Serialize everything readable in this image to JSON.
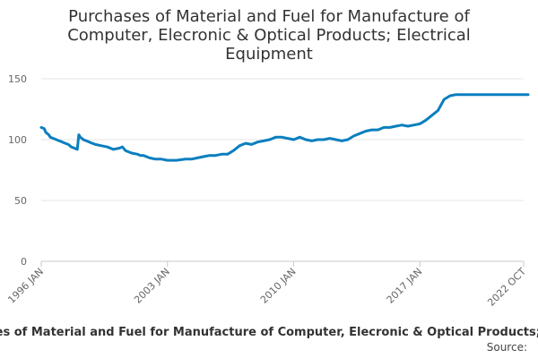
{
  "chart_data": {
    "type": "line",
    "title": "Purchases of Material and Fuel for Manufacture of Computer, Elecronic & Optical Products; Electrical Equipment",
    "xlabel": "",
    "ylabel": "",
    "ylim": [
      0,
      150
    ],
    "y_ticks": [
      0,
      50,
      100,
      150
    ],
    "x_ticks": [
      "1996 JAN",
      "2003 JAN",
      "2010 JAN",
      "2017 JAN",
      "2022 OCT"
    ],
    "grid": true,
    "legend": "none",
    "series_color": "#0a7fbf",
    "x_unit": "months since 1996 JAN",
    "series": [
      {
        "name": "Purchases of Material and Fuel for Manufacture of Computer, Elecronic & Optical Products; Electrical Equipment",
        "x": [
          0,
          2,
          3,
          5,
          6,
          8,
          10,
          12,
          14,
          16,
          18,
          20,
          22,
          24,
          25,
          26,
          27,
          28,
          30,
          32,
          34,
          36,
          40,
          44,
          48,
          52,
          54,
          56,
          60,
          64,
          66,
          68,
          70,
          72,
          76,
          80,
          84,
          90,
          96,
          100,
          104,
          108,
          112,
          116,
          120,
          124,
          128,
          132,
          136,
          140,
          144,
          148,
          152,
          156,
          160,
          164,
          168,
          172,
          176,
          180,
          184,
          188,
          192,
          196,
          200,
          204,
          208,
          212,
          216,
          220,
          224,
          228,
          232,
          236,
          240,
          244,
          248,
          252,
          256,
          260,
          264,
          268,
          272,
          276,
          280,
          284,
          288,
          292,
          296,
          300,
          304,
          308,
          312,
          316,
          318,
          320,
          324,
          308
        ],
        "y": [
          110,
          109,
          106,
          104,
          102,
          101,
          100,
          99,
          98,
          97,
          96,
          94,
          93,
          92,
          104,
          102,
          101,
          100,
          99,
          98,
          97,
          96,
          95,
          94,
          92,
          93,
          94,
          91,
          89,
          88,
          87,
          87,
          86,
          85,
          84,
          84,
          83,
          83,
          84,
          84,
          85,
          86,
          87,
          87,
          88,
          88,
          91,
          95,
          97,
          96,
          98,
          99,
          100,
          102,
          102,
          101,
          100,
          102,
          100,
          99,
          100,
          100,
          101,
          100,
          99,
          100,
          103,
          105,
          107,
          108,
          108,
          110,
          110,
          111,
          112,
          111,
          112,
          113,
          116,
          120,
          124,
          133,
          136,
          137,
          137,
          137,
          137,
          137,
          137,
          137,
          137,
          137,
          137,
          137,
          137,
          137,
          137,
          137
        ],
        "values": [
          110,
          109,
          106,
          104,
          102,
          101,
          100,
          99,
          98,
          97,
          96,
          94,
          93,
          92,
          104,
          102,
          101,
          100,
          99,
          98,
          97,
          96,
          95,
          94,
          92,
          93,
          94,
          91,
          89,
          88,
          87,
          87,
          86,
          85,
          84,
          84,
          83,
          83,
          84,
          84,
          85,
          86,
          87,
          87,
          88,
          88,
          91,
          95,
          97,
          96,
          98,
          99,
          100,
          102,
          102,
          101,
          100,
          102,
          100,
          99,
          100,
          100,
          101,
          100,
          99,
          100,
          103,
          105,
          107,
          108,
          108,
          110,
          110,
          111,
          112,
          111,
          112,
          113,
          116,
          120,
          124,
          133,
          136,
          137,
          137,
          137,
          137,
          137,
          137,
          137,
          137,
          137,
          137,
          137,
          137,
          137,
          137,
          137
        ]
      }
    ]
  },
  "footer": {
    "series_text": "Purchases of Material and Fuel for Manufacture of Computer, Elecronic & Optical Products; Electrical Equipment",
    "source_text": "Source:"
  }
}
